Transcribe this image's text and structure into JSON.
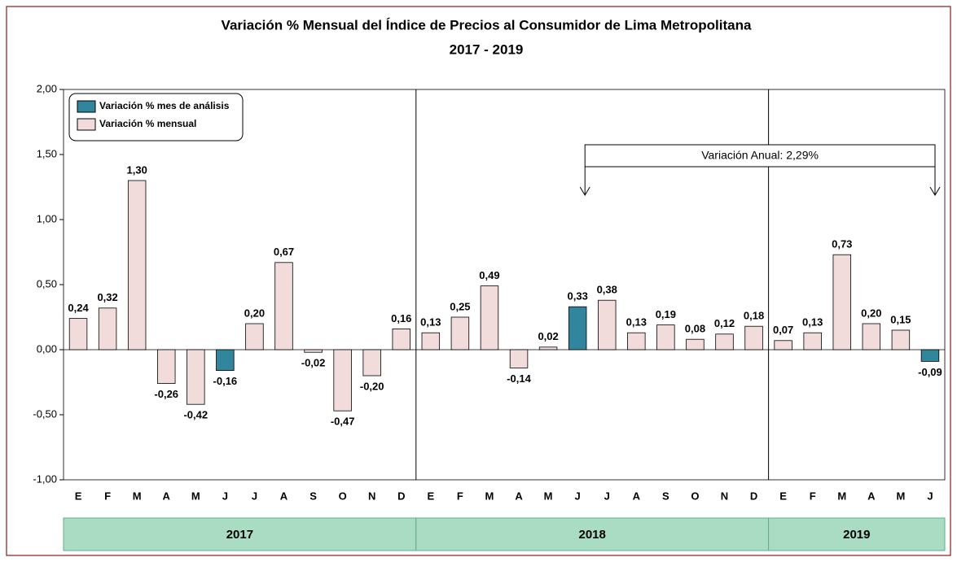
{
  "chart_data": {
    "type": "bar",
    "title": "Variación % Mensual del Índice de Precios al Consumidor de Lima Metropolitana",
    "subtitle": "2017 - 2019",
    "groups": [
      {
        "label": "2017",
        "categories": [
          "E",
          "F",
          "M",
          "A",
          "M",
          "J",
          "J",
          "A",
          "S",
          "O",
          "N",
          "D"
        ]
      },
      {
        "label": "2018",
        "categories": [
          "E",
          "F",
          "M",
          "A",
          "M",
          "J",
          "J",
          "A",
          "S",
          "O",
          "N",
          "D"
        ]
      },
      {
        "label": "2019",
        "categories": [
          "E",
          "F",
          "M",
          "A",
          "M",
          "J"
        ]
      }
    ],
    "series": [
      {
        "name": "Variación % mes de análisis",
        "color": "#31859c",
        "values": [
          null,
          null,
          null,
          null,
          null,
          -0.16,
          null,
          null,
          null,
          null,
          null,
          null,
          null,
          null,
          null,
          null,
          null,
          0.33,
          null,
          null,
          null,
          null,
          null,
          null,
          null,
          null,
          null,
          null,
          null,
          -0.09
        ],
        "value_labels": [
          null,
          null,
          null,
          null,
          null,
          "-0,16",
          null,
          null,
          null,
          null,
          null,
          null,
          null,
          null,
          null,
          null,
          null,
          "0,33",
          null,
          null,
          null,
          null,
          null,
          null,
          null,
          null,
          null,
          null,
          null,
          "-0,09"
        ]
      },
      {
        "name": "Variación % mensual",
        "color": "#f2dcdb",
        "values": [
          0.24,
          0.32,
          1.3,
          -0.26,
          -0.42,
          null,
          0.2,
          0.67,
          -0.02,
          -0.47,
          -0.2,
          0.16,
          0.13,
          0.25,
          0.49,
          -0.14,
          0.02,
          null,
          0.38,
          0.13,
          0.19,
          0.08,
          0.12,
          0.18,
          0.07,
          0.13,
          0.73,
          0.2,
          0.15,
          null
        ],
        "value_labels": [
          "0,24",
          "0,32",
          "1,30",
          "-0,26",
          "-0,42",
          null,
          "0,20",
          "0,67",
          "-0,02",
          "-0,47",
          "-0,20",
          "0,16",
          "0,13",
          "0,25",
          "0,49",
          "-0,14",
          "0,02",
          null,
          "0,38",
          "0,13",
          "0,19",
          "0,08",
          "0,12",
          "0,18",
          "0,07",
          "0,13",
          "0,73",
          "0,20",
          "0,15",
          null
        ]
      }
    ],
    "ylim": [
      -1,
      2
    ],
    "yticks": [
      {
        "value": -1,
        "label": "-1,00"
      },
      {
        "value": -0.5,
        "label": "-0,50"
      },
      {
        "value": 0,
        "label": "0,00"
      },
      {
        "value": 0.5,
        "label": "0,50"
      },
      {
        "value": 1,
        "label": "1,00"
      },
      {
        "value": 1.5,
        "label": "1,50"
      },
      {
        "value": 2,
        "label": "2,00"
      }
    ],
    "annotation": "Variación Anual: 2,29%",
    "legend": "upper left"
  }
}
